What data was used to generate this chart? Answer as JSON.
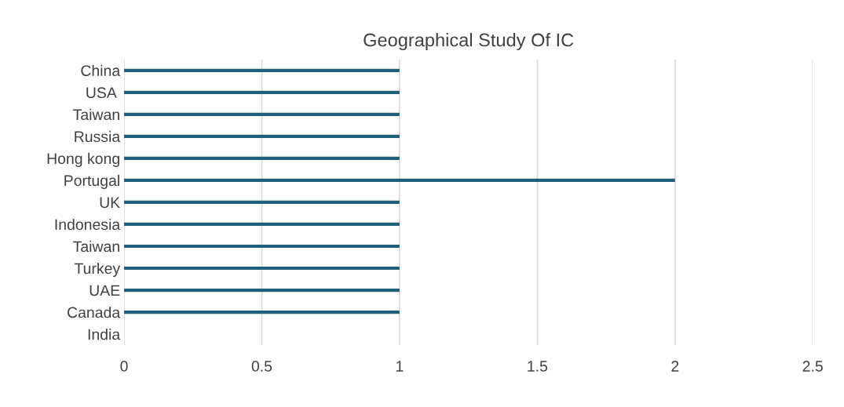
{
  "chart_data": {
    "type": "bar",
    "orientation": "horizontal",
    "title": "Geographical Study Of IC",
    "categories": [
      "China",
      "USA ",
      "Taiwan",
      "Russia",
      "Hong kong",
      "Portugal",
      "UK",
      "Indonesia",
      "Taiwan",
      "Turkey",
      "UAE",
      "Canada",
      "India"
    ],
    "values": [
      1,
      1,
      1,
      1,
      1,
      2,
      1,
      1,
      1,
      1,
      1,
      1,
      null
    ],
    "color": "#1f5f7a",
    "xlim": [
      0,
      2.5
    ],
    "xticks": [
      0,
      0.5,
      1,
      1.5,
      2,
      2.5
    ],
    "grid": "x"
  }
}
